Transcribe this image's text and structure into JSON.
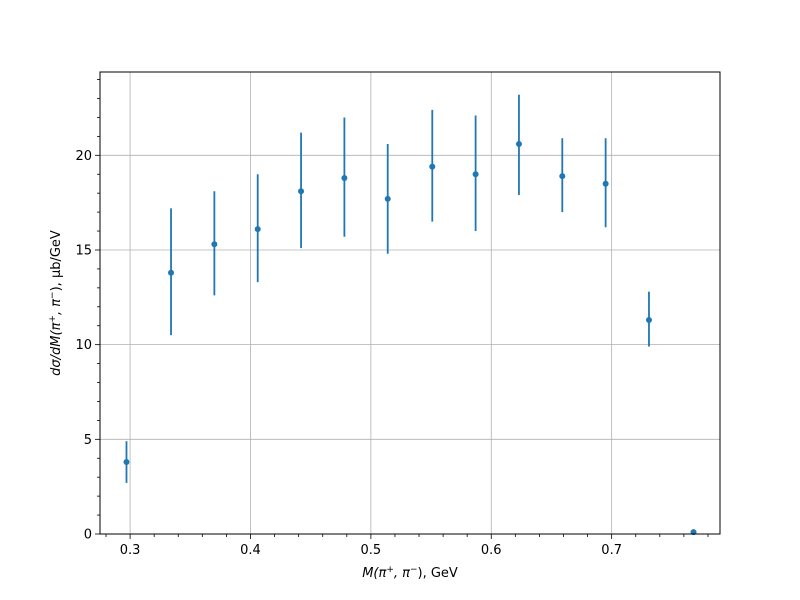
{
  "chart_data": {
    "type": "scatter",
    "title": "",
    "xlabel_parts": {
      "base": "M(π",
      "sup1": "+",
      "mid": ", π",
      "sup2": "−",
      "end": "), GeV"
    },
    "ylabel_parts": {
      "base": "dσ/dM(π",
      "sup1": "+",
      "mid": ", π",
      "sup2": "−",
      "end": "), μb/GeV"
    },
    "xlim": [
      0.275,
      0.79
    ],
    "ylim": [
      0,
      24.4
    ],
    "xticks": [
      0.3,
      0.4,
      0.5,
      0.6,
      0.7
    ],
    "xtick_labels": [
      "0.3",
      "0.4",
      "0.5",
      "0.6",
      "0.7"
    ],
    "yticks": [
      0,
      5,
      10,
      15,
      20
    ],
    "ytick_labels": [
      "0",
      "5",
      "10",
      "15",
      "20"
    ],
    "grid": true,
    "color": "#1f77b4",
    "series": [
      {
        "x": [
          0.297,
          0.334,
          0.37,
          0.406,
          0.442,
          0.478,
          0.514,
          0.551,
          0.587,
          0.623,
          0.659,
          0.695,
          0.731,
          0.768
        ],
        "y": [
          3.8,
          13.8,
          15.3,
          16.1,
          18.1,
          18.8,
          17.7,
          19.4,
          19.0,
          20.6,
          18.9,
          18.5,
          11.3,
          0.1
        ],
        "yerr_low": [
          1.1,
          3.3,
          2.7,
          2.8,
          3.0,
          3.1,
          2.9,
          2.9,
          3.0,
          2.7,
          1.9,
          2.3,
          1.4,
          0.0
        ],
        "yerr_high": [
          1.1,
          3.4,
          2.8,
          2.9,
          3.1,
          3.2,
          2.9,
          3.0,
          3.1,
          2.6,
          2.0,
          2.4,
          1.5,
          0.0
        ]
      }
    ]
  }
}
